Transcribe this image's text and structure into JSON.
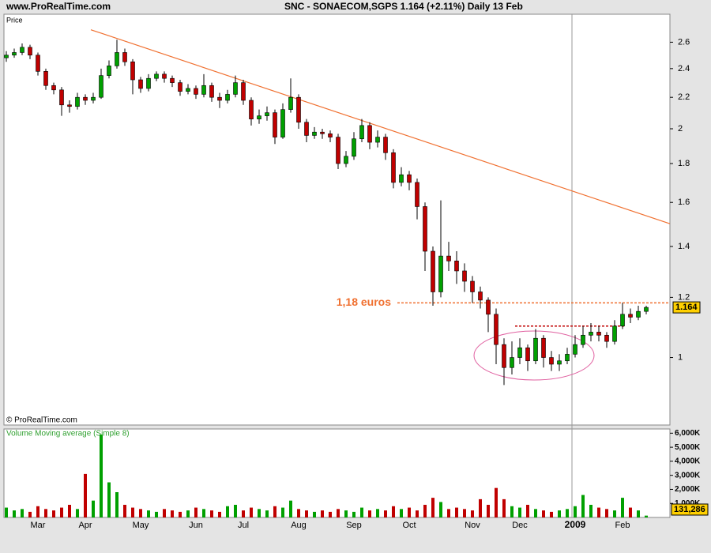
{
  "header": {
    "site": "www.ProRealTime.com",
    "title": "SNC - SONAECOM,SGPS   1.164 (+2.11%)   Daily  13 Feb"
  },
  "chart_data": [
    {
      "type": "candlestick",
      "axis_label": "Price",
      "copyright": "© ProRealTime.com",
      "log": true,
      "ylim": [
        0.815,
        2.83
      ],
      "yticks": [
        1,
        1.2,
        1.4,
        1.6,
        1.8,
        2,
        2.2,
        2.4,
        2.6
      ],
      "up_color": "#00a000",
      "down_color": "#c00000",
      "last_label": "1.164",
      "categories": [
        null,
        null,
        null,
        null,
        "Mar",
        null,
        null,
        null,
        null,
        null,
        "Apr",
        null,
        null,
        null,
        null,
        null,
        null,
        "May",
        null,
        null,
        null,
        null,
        null,
        null,
        "Jun",
        null,
        null,
        null,
        null,
        null,
        "Jul",
        null,
        null,
        null,
        null,
        null,
        null,
        "Aug",
        null,
        null,
        null,
        null,
        null,
        null,
        "Sep",
        null,
        null,
        null,
        null,
        null,
        null,
        "Oct",
        null,
        null,
        null,
        null,
        null,
        null,
        null,
        "Nov",
        null,
        null,
        null,
        null,
        null,
        "Dec",
        null,
        null,
        null,
        null,
        null,
        null,
        "2009",
        null,
        null,
        null,
        null,
        null,
        "Feb",
        null,
        null,
        null
      ],
      "open": [
        2.48,
        2.5,
        2.52,
        2.56,
        2.5,
        2.38,
        2.28,
        2.25,
        2.15,
        2.14,
        2.2,
        2.18,
        2.2,
        2.35,
        2.42,
        2.52,
        2.45,
        2.32,
        2.26,
        2.33,
        2.36,
        2.33,
        2.3,
        2.24,
        2.26,
        2.22,
        2.28,
        2.2,
        2.18,
        2.22,
        2.3,
        2.18,
        2.06,
        2.08,
        2.1,
        1.95,
        2.12,
        2.2,
        2.04,
        1.96,
        1.98,
        1.97,
        1.95,
        1.8,
        1.84,
        1.94,
        2.02,
        1.92,
        1.95,
        1.86,
        1.7,
        1.74,
        1.7,
        1.58,
        1.38,
        1.22,
        1.36,
        1.34,
        1.3,
        1.26,
        1.22,
        1.19,
        1.14,
        1.04,
        0.97,
        1.0,
        1.03,
        0.99,
        1.06,
        1.0,
        0.98,
        0.99,
        1.01,
        1.04,
        1.07,
        1.08,
        1.07,
        1.05,
        1.1,
        1.14,
        1.13,
        1.15
      ],
      "high": [
        2.53,
        2.55,
        2.59,
        2.58,
        2.52,
        2.4,
        2.3,
        2.27,
        2.18,
        2.23,
        2.22,
        2.23,
        2.4,
        2.46,
        2.62,
        2.55,
        2.47,
        2.34,
        2.36,
        2.38,
        2.38,
        2.35,
        2.32,
        2.29,
        2.28,
        2.36,
        2.3,
        2.23,
        2.25,
        2.35,
        2.32,
        2.2,
        2.12,
        2.14,
        2.12,
        2.16,
        2.33,
        2.22,
        2.06,
        2.01,
        2.0,
        1.99,
        1.97,
        1.87,
        1.98,
        2.06,
        2.04,
        1.99,
        1.97,
        1.88,
        1.78,
        1.76,
        1.72,
        1.6,
        1.4,
        1.61,
        1.42,
        1.38,
        1.33,
        1.28,
        1.24,
        1.2,
        1.16,
        1.06,
        1.05,
        1.06,
        1.04,
        1.09,
        1.07,
        1.02,
        1.01,
        1.03,
        1.07,
        1.1,
        1.11,
        1.1,
        1.08,
        1.12,
        1.18,
        1.16,
        1.17,
        1.17
      ],
      "low": [
        2.45,
        2.48,
        2.5,
        2.47,
        2.35,
        2.25,
        2.22,
        2.08,
        2.1,
        2.12,
        2.15,
        2.16,
        2.19,
        2.33,
        2.4,
        2.42,
        2.22,
        2.23,
        2.24,
        2.31,
        2.3,
        2.27,
        2.21,
        2.22,
        2.19,
        2.2,
        2.17,
        2.13,
        2.16,
        2.2,
        2.15,
        2.02,
        2.03,
        2.05,
        1.91,
        1.94,
        2.1,
        2.0,
        1.92,
        1.94,
        1.94,
        1.92,
        1.77,
        1.78,
        1.82,
        1.92,
        1.88,
        1.89,
        1.82,
        1.67,
        1.68,
        1.66,
        1.52,
        1.3,
        1.17,
        1.2,
        1.3,
        1.25,
        1.22,
        1.18,
        1.16,
        1.08,
        0.98,
        0.92,
        0.95,
        0.98,
        0.96,
        0.98,
        0.97,
        0.96,
        0.96,
        0.98,
        1.0,
        1.03,
        1.05,
        1.05,
        1.03,
        1.04,
        1.09,
        1.11,
        1.12,
        1.14
      ],
      "close": [
        2.5,
        2.52,
        2.56,
        2.5,
        2.38,
        2.28,
        2.25,
        2.15,
        2.14,
        2.2,
        2.18,
        2.2,
        2.35,
        2.42,
        2.52,
        2.45,
        2.32,
        2.26,
        2.33,
        2.36,
        2.33,
        2.3,
        2.24,
        2.26,
        2.22,
        2.28,
        2.2,
        2.18,
        2.22,
        2.3,
        2.18,
        2.06,
        2.08,
        2.1,
        1.95,
        2.12,
        2.2,
        2.04,
        1.96,
        1.98,
        1.97,
        1.95,
        1.8,
        1.84,
        1.94,
        2.02,
        1.92,
        1.95,
        1.86,
        1.7,
        1.74,
        1.7,
        1.58,
        1.38,
        1.22,
        1.36,
        1.34,
        1.3,
        1.26,
        1.22,
        1.19,
        1.14,
        1.04,
        0.97,
        1.0,
        1.03,
        0.99,
        1.06,
        1.0,
        0.98,
        0.99,
        1.01,
        1.04,
        1.07,
        1.08,
        1.07,
        1.05,
        1.1,
        1.14,
        1.13,
        1.15,
        1.164
      ],
      "trend_line": {
        "color": "#f07030",
        "from": [
          10.7,
          2.7
        ],
        "to": [
          84,
          1.5
        ]
      },
      "levels": [
        {
          "value": 1.18,
          "from": 49.5,
          "to": 84,
          "color": "#f07030",
          "label": "1,18 euros"
        },
        {
          "value": 1.1,
          "from": 64.4,
          "to": 78.2,
          "color": "#c00000"
        }
      ]
    },
    {
      "type": "bar",
      "title": "Volume Moving average (Simple 8)",
      "ylim": [
        0,
        6300
      ],
      "yticks": [
        {
          "value": 1000,
          "label": "1,000K"
        },
        {
          "value": 2000,
          "label": "2,000K"
        },
        {
          "value": 3000,
          "label": "3,000K"
        },
        {
          "value": 4000,
          "label": "4,000K"
        },
        {
          "value": 5000,
          "label": "5,000K"
        },
        {
          "value": 6000,
          "label": "6,000K"
        }
      ],
      "last_label": "131,286",
      "values": [
        700,
        500,
        600,
        400,
        800,
        600,
        500,
        700,
        900,
        600,
        3100,
        1200,
        5900,
        2500,
        1800,
        900,
        700,
        600,
        500,
        400,
        600,
        500,
        400,
        500,
        700,
        600,
        500,
        400,
        800,
        900,
        500,
        700,
        600,
        500,
        800,
        700,
        1200,
        600,
        500,
        400,
        500,
        400,
        600,
        500,
        400,
        700,
        500,
        600,
        500,
        800,
        600,
        700,
        500,
        900,
        1400,
        1100,
        600,
        700,
        600,
        500,
        1300,
        900,
        2100,
        1300,
        800,
        700,
        900,
        600,
        500,
        400,
        500,
        600,
        800,
        1600,
        900,
        700,
        600,
        500,
        1400,
        700,
        500,
        131.286
      ]
    }
  ]
}
